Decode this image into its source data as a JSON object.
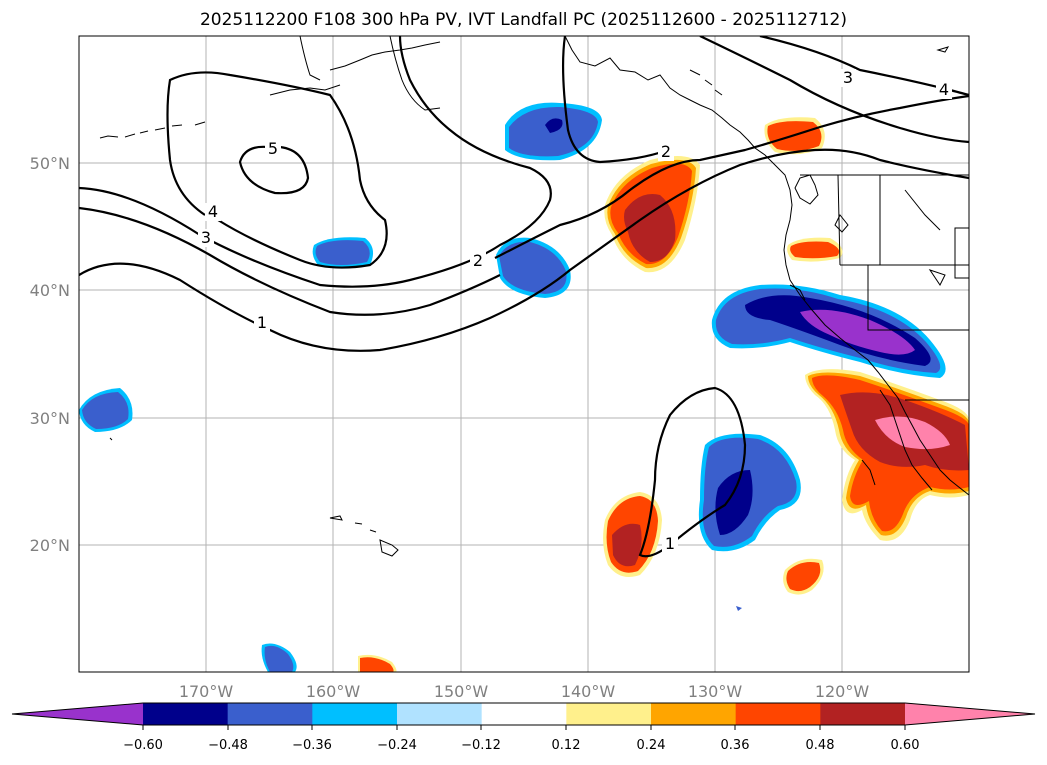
{
  "title": "2025112200 F108 300 hPa PV, IVT Landfall PC (2025112600 - 2025112712)",
  "map": {
    "lon_labels": [
      "170°W",
      "160°W",
      "150°W",
      "140°W",
      "130°W",
      "120°W"
    ],
    "lat_labels": [
      "50°N",
      "40°N",
      "30°N",
      "20°N"
    ],
    "gridlines": true,
    "pv_contour_labels": [
      "5",
      "4",
      "3",
      "2",
      "1",
      "2",
      "1",
      "3",
      "4"
    ]
  },
  "colorbar": {
    "ticks": [
      "−0.60",
      "−0.48",
      "−0.36",
      "−0.24",
      "−0.12",
      "0.12",
      "0.24",
      "0.36",
      "0.48",
      "0.60"
    ],
    "colors": [
      "#9932cc",
      "#00008b",
      "#3a5fcd",
      "#00bfff",
      "#b0e2ff",
      "#ffffff",
      "#fff08c",
      "#ffa500",
      "#ff4500",
      "#b22222",
      "#ff82ab"
    ],
    "extend": "both"
  }
}
